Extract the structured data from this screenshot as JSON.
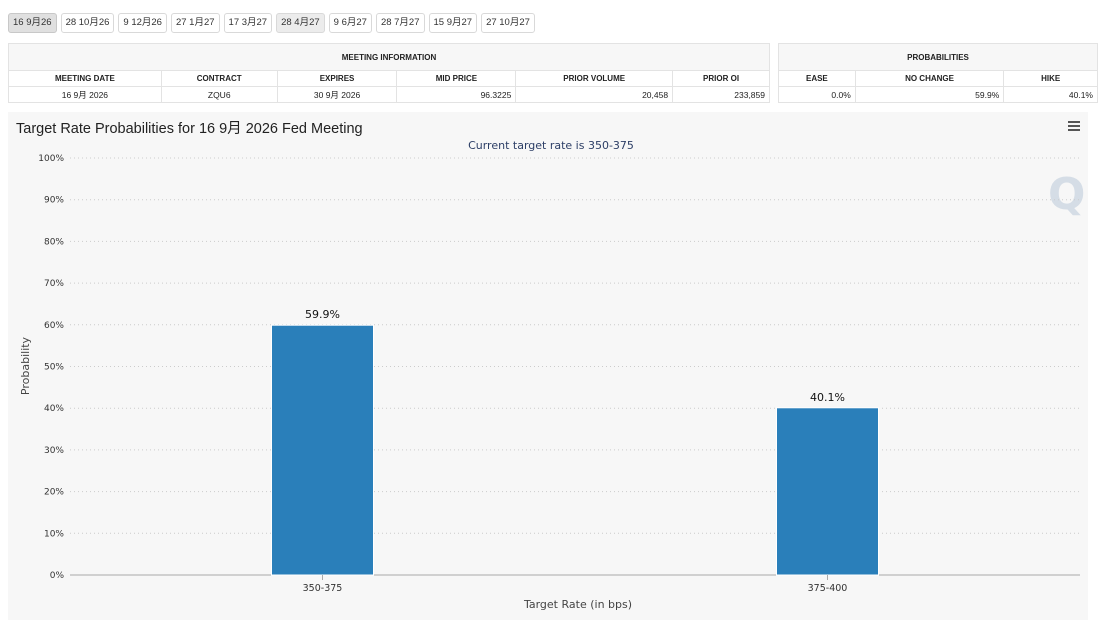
{
  "date_tabs": [
    "16 9月26",
    "28 10月26",
    "9 12月26",
    "27 1月27",
    "17 3月27",
    "28 4月27",
    "9 6月27",
    "28 7月27",
    "15 9月27",
    "27 10月27"
  ],
  "meeting_info": {
    "group_label": "MEETING INFORMATION",
    "headers": [
      "MEETING DATE",
      "CONTRACT",
      "EXPIRES",
      "MID PRICE",
      "PRIOR VOLUME",
      "PRIOR OI"
    ],
    "row": [
      "16 9月 2026",
      "ZQU6",
      "30 9月 2026",
      "96.3225",
      "20,458",
      "233,859"
    ]
  },
  "probabilities": {
    "group_label": "PROBABILITIES",
    "headers": [
      "EASE",
      "NO CHANGE",
      "HIKE"
    ],
    "row": [
      "0.0%",
      "59.9%",
      "40.1%"
    ]
  },
  "chart": {
    "title": "Target Rate Probabilities for 16 9月 2026 Fed Meeting",
    "menu_icon": "hamburger-menu-icon",
    "watermark": "Q"
  },
  "chart_data": {
    "type": "bar",
    "subtitle": "Current target rate is 350-375",
    "categories": [
      "350-375",
      "375-400"
    ],
    "values": [
      59.9,
      40.1
    ],
    "data_labels": [
      "59.9%",
      "40.1%"
    ],
    "xlabel": "Target Rate (in bps)",
    "ylabel": "Probability",
    "ylim": [
      0,
      100
    ],
    "yticks": [
      "0%",
      "10%",
      "20%",
      "30%",
      "40%",
      "50%",
      "60%",
      "70%",
      "80%",
      "90%",
      "100%"
    ],
    "grid": true,
    "bar_color": "#2a7fba"
  }
}
